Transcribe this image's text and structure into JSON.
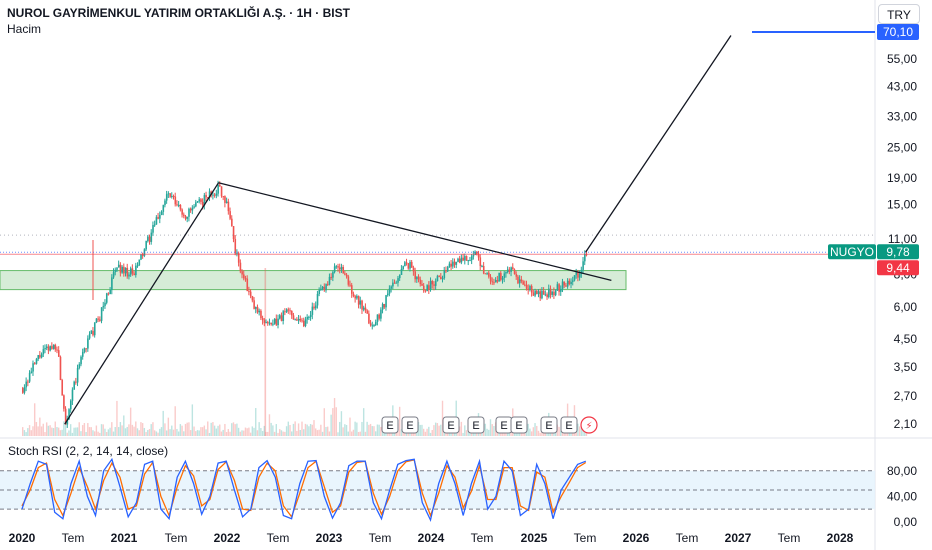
{
  "header": {
    "title": "NUROL GAYRİMENKUL YATIRIM ORTAKLIĞI A.Ş. · 1H · BIST",
    "volume_label": "Hacim",
    "currency": "TRY"
  },
  "colors": {
    "up": "#26a69a",
    "down": "#ef5350",
    "trendline": "#131722",
    "target_line": "#2962ff",
    "support_zone": "#c8e6c9",
    "stoch_k": "#2962ff",
    "stoch_d": "#ff6d00",
    "stoch_band": "#e3f2fd",
    "ticker_badge": "#089981",
    "prev_close_badge": "#f23645"
  },
  "chart_data": {
    "type": "candlestick",
    "scale": "log",
    "y_axis_ticks": [
      "2,10",
      "2,70",
      "3,50",
      "4,50",
      "6,00",
      "8,00",
      "11,00",
      "15,00",
      "19,00",
      "25,00",
      "33,00",
      "43,00",
      "55,00",
      "70,10"
    ],
    "x_axis_ticks": [
      {
        "label": "2020",
        "bold": true
      },
      {
        "label": "Tem",
        "bold": false
      },
      {
        "label": "2021",
        "bold": true
      },
      {
        "label": "Tem",
        "bold": false
      },
      {
        "label": "2022",
        "bold": true
      },
      {
        "label": "Tem",
        "bold": false
      },
      {
        "label": "2023",
        "bold": true
      },
      {
        "label": "Tem",
        "bold": false
      },
      {
        "label": "2024",
        "bold": true
      },
      {
        "label": "Tem",
        "bold": false
      },
      {
        "label": "2025",
        "bold": true
      },
      {
        "label": "Tem",
        "bold": false
      },
      {
        "label": "2026",
        "bold": true
      },
      {
        "label": "Tem",
        "bold": false
      },
      {
        "label": "2027",
        "bold": true
      },
      {
        "label": "Tem",
        "bold": false
      },
      {
        "label": "2028",
        "bold": true
      }
    ],
    "price_path": [
      [
        "2020-01",
        2.9
      ],
      [
        "2020-03",
        3.9
      ],
      [
        "2020-05",
        4.3
      ],
      [
        "2020-06",
        2.15
      ],
      [
        "2020-08",
        4.0
      ],
      [
        "2020-10",
        5.5
      ],
      [
        "2020-12",
        8.6
      ],
      [
        "2021-02",
        8.0
      ],
      [
        "2021-04",
        11.5
      ],
      [
        "2021-06",
        16.5
      ],
      [
        "2021-08",
        13.5
      ],
      [
        "2021-10",
        15.5
      ],
      [
        "2021-12",
        17.5
      ],
      [
        "2022-01",
        15.0
      ],
      [
        "2022-02",
        9.5
      ],
      [
        "2022-04",
        6.0
      ],
      [
        "2022-06",
        5.0
      ],
      [
        "2022-08",
        5.8
      ],
      [
        "2022-10",
        5.2
      ],
      [
        "2022-12",
        7.0
      ],
      [
        "2023-02",
        8.8
      ],
      [
        "2023-04",
        6.5
      ],
      [
        "2023-06",
        5.0
      ],
      [
        "2023-08",
        7.0
      ],
      [
        "2023-10",
        9.0
      ],
      [
        "2023-12",
        7.0
      ],
      [
        "2024-02",
        8.0
      ],
      [
        "2024-04",
        9.3
      ],
      [
        "2024-06",
        9.4
      ],
      [
        "2024-08",
        7.5
      ],
      [
        "2024-10",
        8.3
      ],
      [
        "2024-12",
        7.0
      ],
      [
        "2025-02",
        6.6
      ],
      [
        "2025-04",
        7.2
      ],
      [
        "2025-06",
        8.1
      ],
      [
        "2025-07",
        9.78
      ]
    ],
    "support_zone": [
      7.0,
      8.3
    ],
    "upper_trendline": [
      [
        "2021-12",
        18.2
      ],
      [
        "2025-10",
        7.6
      ]
    ],
    "lower_trendline": [
      [
        "2020-06",
        2.1
      ],
      [
        "2021-12",
        18.2
      ]
    ],
    "projection_line": [
      [
        "2025-07",
        9.8
      ],
      [
        "2026-12",
        68.0
      ]
    ],
    "target_line": {
      "value": 70.1,
      "label": "70,10"
    },
    "ticker": {
      "symbol": "NUGYO",
      "price": "9,78"
    },
    "prev_close_label": "9,44",
    "earnings_markers": [
      "E",
      "E",
      "E",
      "E",
      "E",
      "E",
      "E",
      "E"
    ],
    "lightning_marker": "⚡",
    "indicator": {
      "label": "Stoch RSI (2, 2, 14, 14, close)",
      "y_axis_ticks": [
        "80,00",
        "40,00",
        "0,00"
      ],
      "levels": [
        80,
        50,
        20
      ],
      "k": [
        20,
        60,
        95,
        90,
        15,
        5,
        60,
        95,
        40,
        10,
        80,
        98,
        55,
        8,
        30,
        90,
        95,
        20,
        5,
        70,
        95,
        60,
        12,
        40,
        92,
        95,
        50,
        8,
        20,
        85,
        96,
        70,
        10,
        5,
        60,
        95,
        96,
        40,
        6,
        30,
        88,
        95,
        95,
        30,
        5,
        50,
        90,
        96,
        98,
        30,
        3,
        60,
        95,
        60,
        10,
        60,
        95,
        20,
        40,
        95,
        80,
        10,
        20,
        90,
        60,
        5,
        50,
        70,
        90,
        95
      ],
      "d": [
        25,
        50,
        85,
        92,
        35,
        10,
        45,
        85,
        55,
        20,
        65,
        92,
        70,
        20,
        25,
        75,
        93,
        40,
        10,
        55,
        88,
        72,
        25,
        35,
        82,
        94,
        65,
        20,
        18,
        70,
        92,
        80,
        25,
        8,
        45,
        85,
        95,
        55,
        15,
        25,
        78,
        93,
        95,
        45,
        12,
        40,
        80,
        94,
        97,
        45,
        10,
        45,
        88,
        70,
        22,
        48,
        88,
        35,
        35,
        85,
        85,
        25,
        18,
        78,
        70,
        15,
        40,
        62,
        85,
        93
      ]
    }
  }
}
